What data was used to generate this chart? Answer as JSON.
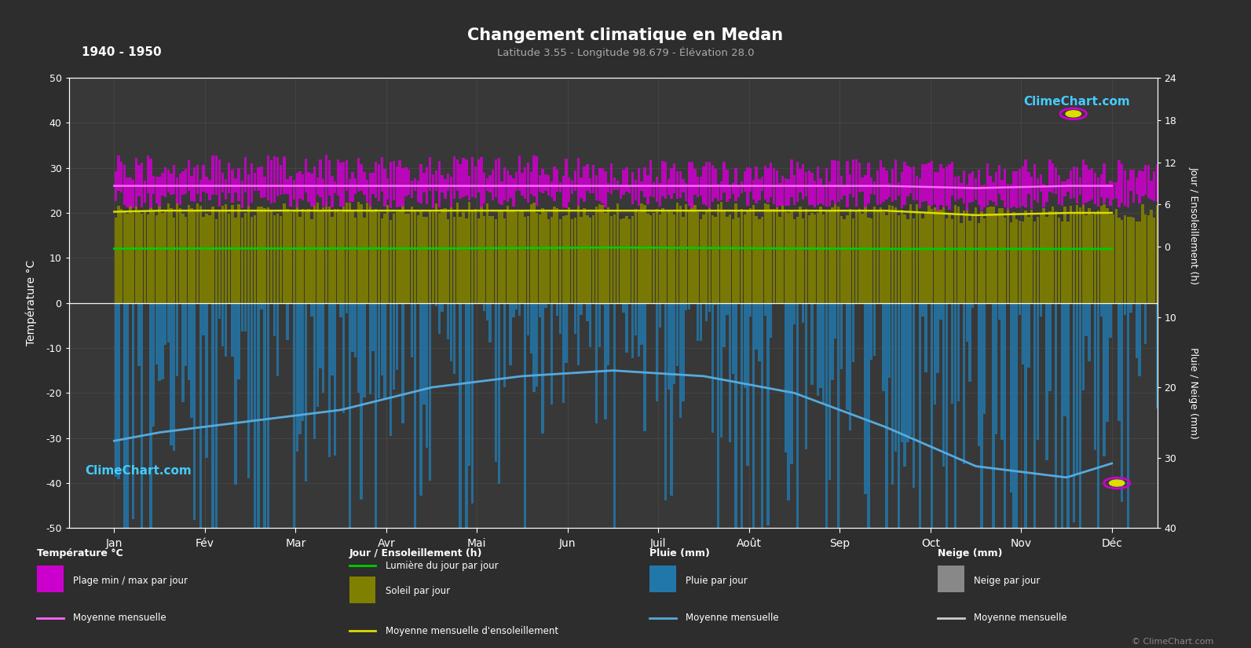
{
  "title": "Changement climatique en Medan",
  "subtitle": "Latitude 3.55 - Longitude 98.679 - Élévation 28.0",
  "period": "1940 - 1950",
  "bg_color": "#2d2d2d",
  "plot_bg_color": "#383838",
  "grid_color": "#555555",
  "months": [
    "Jan",
    "Fév",
    "Mar",
    "Avr",
    "Mai",
    "Jun",
    "Juil",
    "Août",
    "Sep",
    "Oct",
    "Nov",
    "Déc"
  ],
  "ylim_left": [
    -50,
    50
  ],
  "ylim_right": [
    40,
    -24
  ],
  "temp_max_monthly": [
    30,
    30,
    30,
    30,
    30,
    29,
    29,
    29,
    29,
    29,
    29,
    30
  ],
  "temp_min_monthly": [
    23,
    23,
    23,
    23,
    23,
    23,
    23,
    23,
    23,
    22,
    23,
    23
  ],
  "temp_mean_monthly": [
    26,
    26,
    26,
    26,
    26,
    26,
    26,
    26,
    26,
    25.5,
    26,
    26
  ],
  "daylight_hours_monthly": [
    12.1,
    12.1,
    12.1,
    12.1,
    12.2,
    12.3,
    12.2,
    12.1,
    12.0,
    12.0,
    12.0,
    12.0
  ],
  "sunshine_mean_monthly": [
    20.5,
    20.5,
    20.5,
    20.5,
    20.5,
    20.5,
    20.5,
    20.5,
    20.5,
    19.5,
    20.0,
    20.0
  ],
  "rain_mean_monthly": [
    230,
    210,
    190,
    150,
    130,
    120,
    130,
    160,
    220,
    290,
    310,
    260
  ],
  "colors": {
    "temp_fill": "#cc00cc",
    "temp_mean_line": "#ff66ff",
    "sunshine_fill": "#808000",
    "daylight_fill": "#224422",
    "sunshine_mean_line": "#dddd00",
    "daylight_line": "#00cc00",
    "rain_fill": "#2277aa",
    "rain_mean_line": "#55aadd",
    "snow_fill": "#888888",
    "snow_mean_line": "#cccccc"
  },
  "legend_labels": {
    "temp_section": "Température °C",
    "temp_range": "Plage min / max par jour",
    "temp_mean": "Moyenne mensuelle",
    "sun_section": "Jour / Ensoleillement (h)",
    "daylight": "Lumière du jour par jour",
    "sunshine": "Soleil par jour",
    "sunshine_mean": "Moyenne mensuelle d'ensoleillement",
    "rain_section": "Pluie (mm)",
    "rain_bar": "Pluie par jour",
    "rain_mean": "Moyenne mensuelle",
    "snow_section": "Neige (mm)",
    "snow_bar": "Neige par jour",
    "snow_mean": "Moyenne mensuelle"
  }
}
